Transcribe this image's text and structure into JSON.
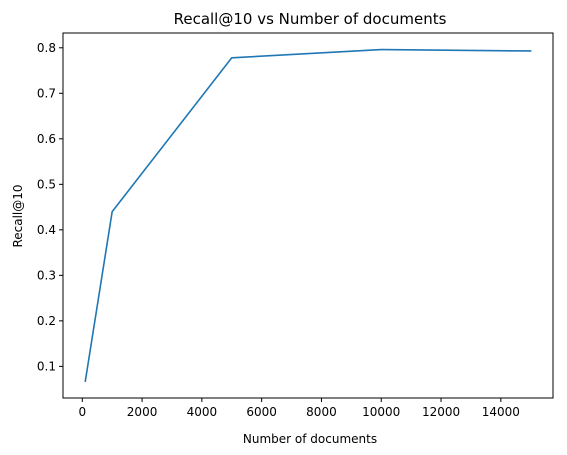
{
  "chart_data": {
    "type": "line",
    "title": "Recall@10 vs Number of documents",
    "xlabel": "Number of documents",
    "ylabel": "Recall@10",
    "x": [
      100,
      1000,
      5000,
      10000,
      15000
    ],
    "series": [
      {
        "values": [
          0.067,
          0.44,
          0.778,
          0.796,
          0.793
        ],
        "color": "#1f77b4"
      }
    ],
    "xlim": [
      -645,
      15745
    ],
    "ylim": [
      0.0305,
      0.8325
    ],
    "xticks": [
      0,
      2000,
      4000,
      6000,
      8000,
      10000,
      12000,
      14000
    ],
    "yticks": [
      0.1,
      0.2,
      0.3,
      0.4,
      0.5,
      0.6,
      0.7,
      0.8
    ],
    "xtick_labels": [
      "0",
      "2000",
      "4000",
      "6000",
      "8000",
      "10000",
      "12000",
      "14000"
    ],
    "ytick_labels": [
      "0.1",
      "0.2",
      "0.3",
      "0.4",
      "0.5",
      "0.6",
      "0.7",
      "0.8"
    ],
    "grid": false,
    "legend": "none"
  }
}
